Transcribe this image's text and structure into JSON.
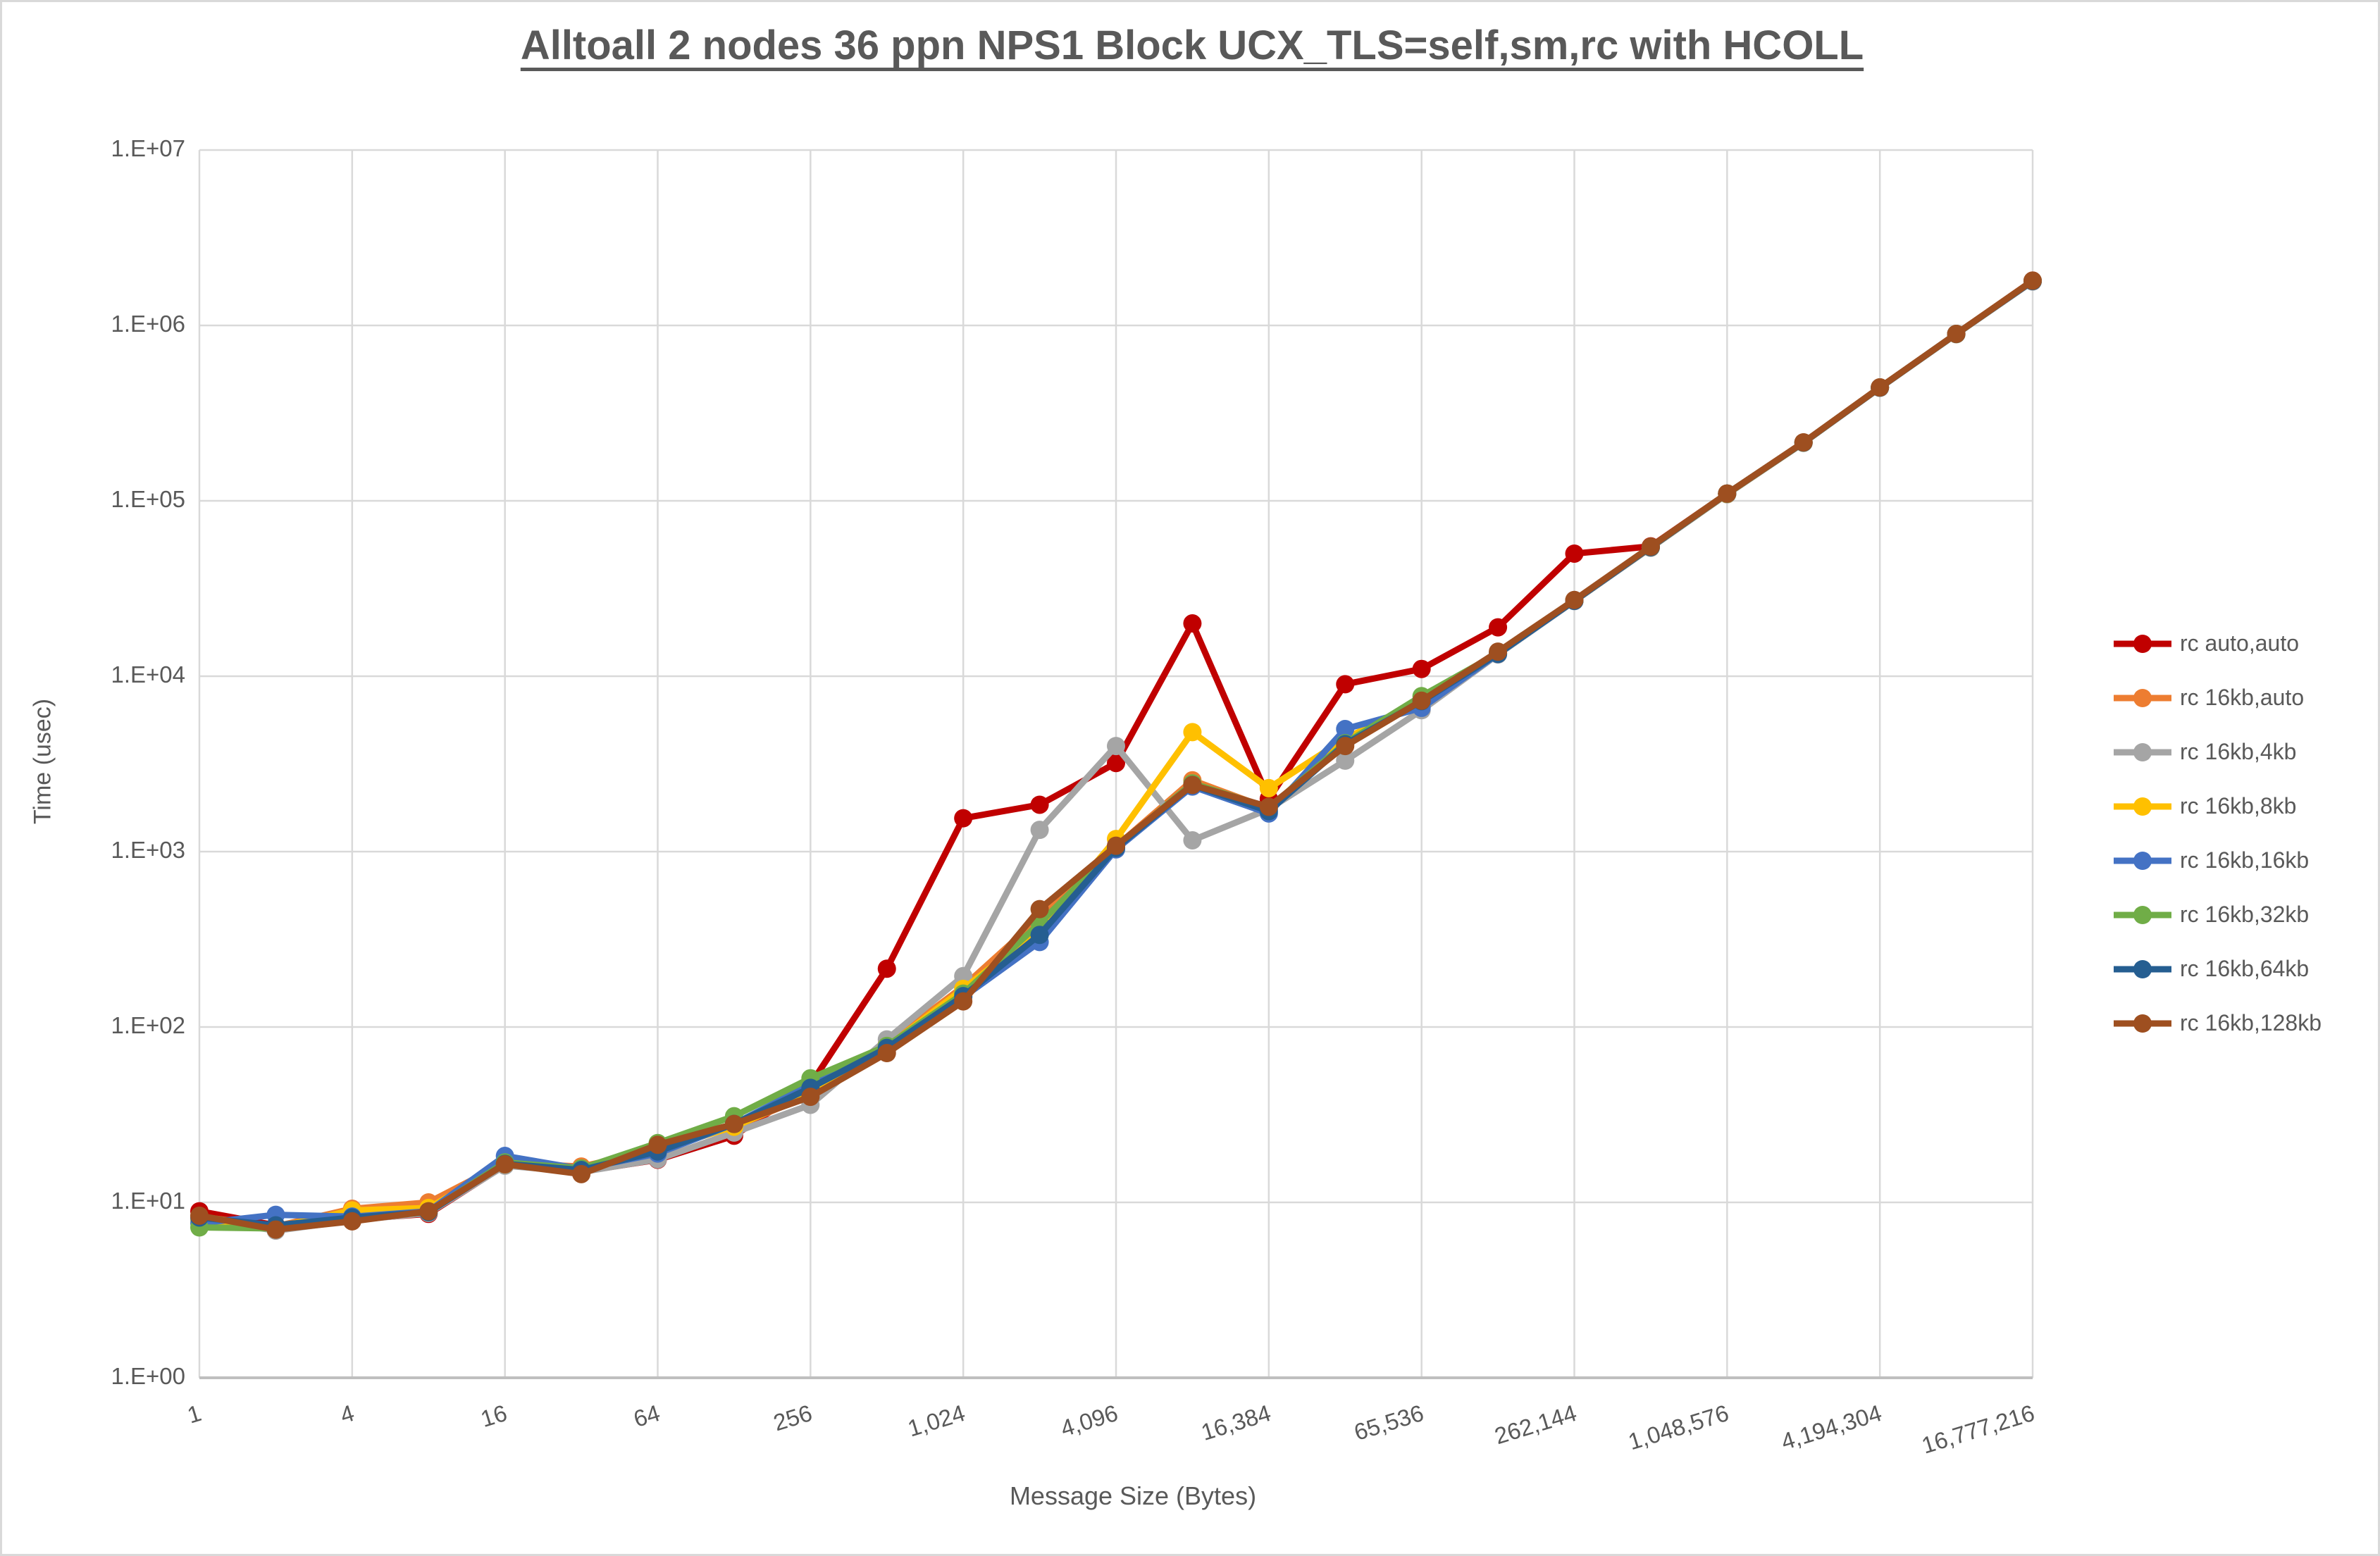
{
  "title": "Alltoall 2 nodes 36 ppn NPS1 Block UCX_TLS=self,sm,rc with HCOLL",
  "colors": {
    "text": "#595959",
    "gridline": "#d9d9d9",
    "axis_line": "#bfbfbf",
    "background": "#ffffff"
  },
  "chart_data": {
    "type": "line",
    "title": "Alltoall 2 nodes 36 ppn NPS1 Block UCX_TLS=self,sm,rc with HCOLL",
    "xlabel": "Message Size (Bytes)",
    "ylabel": "Time (usec)",
    "x_scale": "log2",
    "y_scale": "log10",
    "ylim": [
      1,
      10000000
    ],
    "xlim": [
      1,
      16777216
    ],
    "grid": true,
    "legend_position": "right",
    "y_ticks": [
      "1.E+00",
      "1.E+01",
      "1.E+02",
      "1.E+03",
      "1.E+04",
      "1.E+05",
      "1.E+06",
      "1.E+07"
    ],
    "x_ticks": [
      "1",
      "4",
      "16",
      "64",
      "256",
      "1,024",
      "4,096",
      "16,384",
      "65,536",
      "262,144",
      "1,048,576",
      "4,194,304",
      "16,777,216"
    ],
    "x": [
      1,
      2,
      4,
      8,
      16,
      32,
      64,
      128,
      256,
      512,
      1024,
      2048,
      4096,
      8192,
      16384,
      32768,
      65536,
      131072,
      262144,
      524288,
      1048576,
      2097152,
      4194304,
      8388608,
      16777216
    ],
    "series": [
      {
        "name": "rc auto,auto",
        "color": "#c00000",
        "values": [
          8.9,
          7.4,
          8.0,
          8.6,
          16.3,
          15.0,
          17.5,
          24,
          47,
          215,
          1550,
          1850,
          3200,
          20000,
          2000,
          9000,
          11000,
          19000,
          50000,
          55000,
          110000,
          215000,
          443000,
          895000,
          1800000
        ]
      },
      {
        "name": "rc 16kb,auto",
        "color": "#ed7d31",
        "values": [
          8.3,
          7.3,
          9.2,
          10.0,
          16.8,
          16.0,
          20.0,
          27,
          41,
          80,
          170,
          420,
          1070,
          2550,
          1760,
          4300,
          7400,
          13600,
          27000,
          54600,
          110000,
          215000,
          443000,
          894000,
          1790000
        ]
      },
      {
        "name": "rc 16kb,4kb",
        "color": "#a5a5a5",
        "values": [
          8.1,
          6.9,
          7.9,
          8.7,
          16.2,
          14.9,
          17.6,
          25,
          36,
          85,
          195,
          1330,
          4000,
          1160,
          1750,
          3300,
          6400,
          13300,
          26800,
          54000,
          109000,
          214000,
          441000,
          891000,
          1780000
        ]
      },
      {
        "name": "rc 16kb,8kb",
        "color": "#ffc000",
        "values": [
          7.9,
          7.2,
          9.0,
          9.3,
          16.5,
          15.2,
          20.0,
          27,
          42,
          77,
          165,
          360,
          1180,
          4800,
          2300,
          4400,
          7300,
          13500,
          26900,
          54300,
          109500,
          214500,
          442000,
          893000,
          1790000
        ]
      },
      {
        "name": "rc 16kb,16kb",
        "color": "#4472c4",
        "values": [
          7.6,
          8.5,
          8.3,
          8.9,
          18.4,
          15.5,
          19.0,
          28,
          47,
          74,
          148,
          305,
          1030,
          2350,
          1650,
          5000,
          6600,
          13400,
          26900,
          54400,
          109800,
          214800,
          442000,
          894000,
          1790000
        ]
      },
      {
        "name": "rc 16kb,32kb",
        "color": "#70ad47",
        "values": [
          7.2,
          7.1,
          8.1,
          8.8,
          16.9,
          15.6,
          21.8,
          31,
          51,
          78,
          155,
          390,
          1060,
          2450,
          1780,
          4150,
          7700,
          13500,
          27000,
          54500,
          110000,
          215000,
          442500,
          894500,
          1795000
        ]
      },
      {
        "name": "rc 16kb,64kb",
        "color": "#255e91",
        "values": [
          8.2,
          7.4,
          8.2,
          8.8,
          16.6,
          15.3,
          19.5,
          28,
          45,
          76,
          150,
          335,
          1050,
          2400,
          1700,
          4100,
          7200,
          13400,
          26900,
          54400,
          109900,
          214900,
          442000,
          894000,
          1790000
        ]
      },
      {
        "name": "rc 16kb,128kb",
        "color": "#9e4f20",
        "values": [
          8.4,
          7.0,
          7.8,
          8.9,
          16.5,
          14.5,
          21.3,
          28,
          40,
          71,
          140,
          470,
          1080,
          2400,
          1800,
          4000,
          7250,
          13800,
          27200,
          54800,
          110000,
          215500,
          443000,
          895000,
          1800000
        ]
      }
    ]
  }
}
